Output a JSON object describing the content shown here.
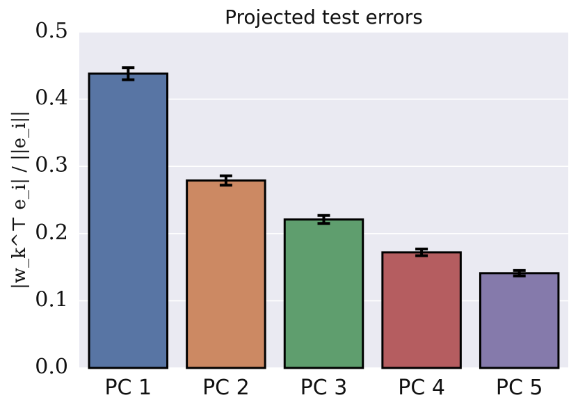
{
  "chart_data": {
    "type": "bar",
    "title": "Projected test errors",
    "xlabel": "",
    "ylabel": "|w_k^⊤ e_i| / ||e_i||",
    "categories": [
      "PC 1",
      "PC 2",
      "PC 3",
      "PC 4",
      "PC 5"
    ],
    "values": [
      0.438,
      0.279,
      0.221,
      0.172,
      0.141
    ],
    "error": [
      0.009,
      0.007,
      0.006,
      0.005,
      0.004
    ],
    "ylim": [
      0,
      0.5
    ],
    "yticks": [
      0.0,
      0.1,
      0.2,
      0.3,
      0.4,
      0.5
    ],
    "ytick_labels": [
      "0.0",
      "0.1",
      "0.2",
      "0.3",
      "0.4",
      "0.5"
    ],
    "grid": true,
    "legend": "none",
    "colors": [
      "#5875a4",
      "#cc8963",
      "#5f9e6e",
      "#b55d60",
      "#857aab"
    ],
    "plot_background": "#eaeaf2",
    "grid_color": "#ffffff",
    "edge_color": "#000000"
  }
}
